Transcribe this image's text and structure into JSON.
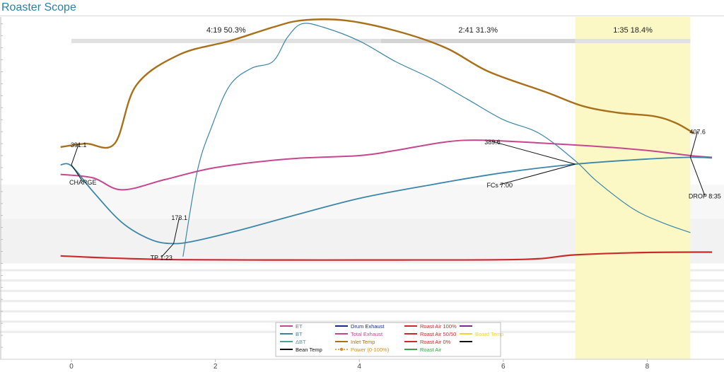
{
  "app": {
    "title": "Roaster Scope"
  },
  "chart_data": {
    "type": "line",
    "xlim": [
      -0.3,
      9.2
    ],
    "x_ticks": [
      "0",
      "2",
      "4",
      "6",
      "8"
    ],
    "phases": [
      {
        "label": "4:19  50.3%",
        "start": 0.0,
        "end": 4.3
      },
      {
        "label": "2:41  31.3%",
        "start": 4.3,
        "end": 7.0
      },
      {
        "label": "1:35  18.4%",
        "start": 7.0,
        "end": 8.6
      }
    ],
    "colors": {
      "ET": "#c8458f",
      "BT": "#3b86a8",
      "DBT": "#3b86a8",
      "Inlet": "#a8701a",
      "RoastAir": "#cc2a2a",
      "DevelopmentFill": "#fbf8c6",
      "PhaseBar": "#e1e1e1"
    },
    "series": [
      {
        "name": "Inlet Temp",
        "points": [
          [
            -0.15,
            0.38
          ],
          [
            0.2,
            0.37
          ],
          [
            0.6,
            0.37
          ],
          [
            0.9,
            0.2
          ],
          [
            1.5,
            0.11
          ],
          [
            2.2,
            0.07
          ],
          [
            2.8,
            0.03
          ],
          [
            3.2,
            0.01
          ],
          [
            3.8,
            0.01
          ],
          [
            4.5,
            0.04
          ],
          [
            5.2,
            0.09
          ],
          [
            5.8,
            0.16
          ],
          [
            6.6,
            0.22
          ],
          [
            7.1,
            0.26
          ],
          [
            7.6,
            0.28
          ],
          [
            8.1,
            0.29
          ],
          [
            8.4,
            0.31
          ],
          [
            8.65,
            0.34
          ]
        ]
      },
      {
        "name": "ET",
        "points": [
          [
            -0.15,
            0.46
          ],
          [
            0.3,
            0.47
          ],
          [
            0.7,
            0.505
          ],
          [
            1.3,
            0.475
          ],
          [
            2.0,
            0.44
          ],
          [
            3.0,
            0.415
          ],
          [
            4.0,
            0.405
          ],
          [
            4.5,
            0.39
          ],
          [
            5.2,
            0.365
          ],
          [
            5.7,
            0.36
          ],
          [
            6.5,
            0.368
          ],
          [
            7.3,
            0.378
          ],
          [
            8.0,
            0.39
          ],
          [
            8.6,
            0.405
          ],
          [
            8.9,
            0.41
          ]
        ]
      },
      {
        "name": "BT",
        "points": [
          [
            -0.15,
            0.432
          ],
          [
            0.0,
            0.435
          ],
          [
            0.3,
            0.51
          ],
          [
            0.7,
            0.6
          ],
          [
            1.1,
            0.65
          ],
          [
            1.4,
            0.662
          ],
          [
            1.7,
            0.655
          ],
          [
            2.3,
            0.625
          ],
          [
            3.0,
            0.585
          ],
          [
            4.0,
            0.53
          ],
          [
            5.0,
            0.49
          ],
          [
            6.0,
            0.455
          ],
          [
            7.0,
            0.43
          ],
          [
            8.0,
            0.415
          ],
          [
            8.6,
            0.41
          ],
          [
            8.9,
            0.412
          ]
        ]
      },
      {
        "name": "ΔBT",
        "points": [
          [
            1.55,
            0.7
          ],
          [
            1.75,
            0.45
          ],
          [
            1.95,
            0.32
          ],
          [
            2.2,
            0.2
          ],
          [
            2.5,
            0.15
          ],
          [
            2.8,
            0.13
          ],
          [
            3.0,
            0.06
          ],
          [
            3.2,
            0.02
          ],
          [
            3.5,
            0.03
          ],
          [
            4.0,
            0.07
          ],
          [
            4.5,
            0.13
          ],
          [
            5.0,
            0.18
          ],
          [
            5.5,
            0.24
          ],
          [
            6.0,
            0.3
          ],
          [
            6.5,
            0.34
          ],
          [
            7.0,
            0.42
          ],
          [
            7.3,
            0.48
          ],
          [
            7.8,
            0.56
          ],
          [
            8.2,
            0.6
          ],
          [
            8.6,
            0.63
          ]
        ]
      },
      {
        "name": "Roast Air",
        "points": [
          [
            -0.15,
            0.698
          ],
          [
            0.5,
            0.704
          ],
          [
            1.5,
            0.709
          ],
          [
            3.0,
            0.71
          ],
          [
            4.5,
            0.71
          ],
          [
            6.3,
            0.708
          ],
          [
            7.0,
            0.695
          ],
          [
            8.0,
            0.688
          ],
          [
            8.9,
            0.687
          ]
        ]
      }
    ],
    "annotations": [
      {
        "label": "391.1",
        "x": 0.0,
        "y": 0.432,
        "lx": 0.1,
        "ly": 0.38
      },
      {
        "label": "CHARGE",
        "x": 0.0,
        "y": 0.432,
        "lx": 0.16,
        "ly": 0.49
      },
      {
        "label": "173.1",
        "x": 1.42,
        "y": 0.662,
        "lx": 1.5,
        "ly": 0.593
      },
      {
        "label": "TP 1:23",
        "x": 1.42,
        "y": 0.662,
        "lx": 1.25,
        "ly": 0.71
      },
      {
        "label": "389.6",
        "x": 7.0,
        "y": 0.43,
        "lx": 5.85,
        "ly": 0.372
      },
      {
        "label": "FCs 7:00",
        "x": 7.0,
        "y": 0.43,
        "lx": 5.95,
        "ly": 0.498
      },
      {
        "label": "407.6",
        "x": 8.6,
        "y": 0.41,
        "lx": 8.7,
        "ly": 0.342
      },
      {
        "label": "DROP 8:35",
        "x": 8.6,
        "y": 0.41,
        "lx": 8.8,
        "ly": 0.53
      }
    ],
    "legend": {
      "placement": "bottom-center",
      "items": [
        {
          "label": "ET",
          "color": "#c8458f",
          "style": "line"
        },
        {
          "label": "BT",
          "color": "#3b86a8",
          "style": "line"
        },
        {
          "label": "ΔBT",
          "color": "#4aa09a",
          "style": "line"
        },
        {
          "label": "Bean Temp",
          "color": "#111111",
          "style": "line"
        },
        {
          "label": "Drum Exhaust",
          "color": "#1b2a8a",
          "style": "line"
        },
        {
          "label": "Total Exhaust",
          "color": "#c8458f",
          "style": "line"
        },
        {
          "label": "Inlet Temp",
          "color": "#a8701a",
          "style": "line"
        },
        {
          "label": "Power (0-100%)",
          "color": "#e08a1e",
          "style": "dots"
        },
        {
          "label": "Roast Air 100%",
          "color": "#cc2a2a",
          "style": "line"
        },
        {
          "label": "Roast Air 50/50",
          "color": "#cc2a2a",
          "style": "line"
        },
        {
          "label": "Roast Air 0%",
          "color": "#cc2a2a",
          "style": "line"
        },
        {
          "label": "Roast Air",
          "color": "#3aa24a",
          "style": "line"
        },
        {
          "label": "",
          "color": "#7a2a8a",
          "style": "line"
        },
        {
          "label": "Board Temp",
          "color": "#f0d23a",
          "style": "line"
        },
        {
          "label": "",
          "color": "#111111",
          "style": "line"
        }
      ]
    }
  }
}
